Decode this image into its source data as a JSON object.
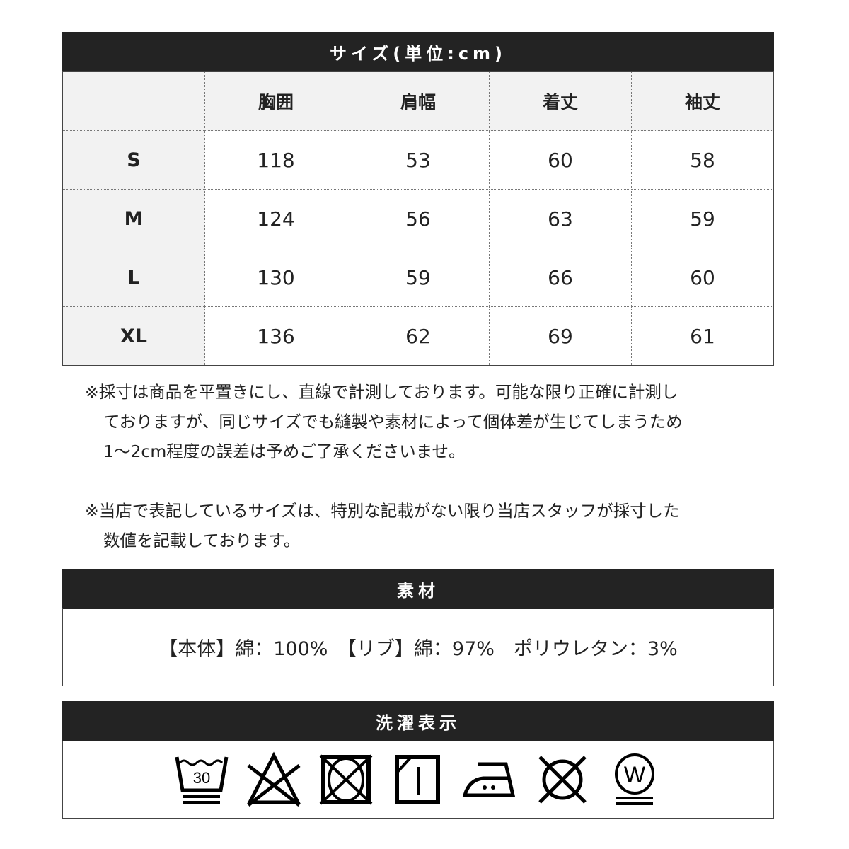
{
  "size_section": {
    "title": "サイズ(単位:cm)",
    "columns": [
      "",
      "胸囲",
      "肩幅",
      "着丈",
      "袖丈"
    ],
    "rows": [
      {
        "size": "S",
        "values": [
          "118",
          "53",
          "60",
          "58"
        ]
      },
      {
        "size": "M",
        "values": [
          "124",
          "56",
          "63",
          "59"
        ]
      },
      {
        "size": "L",
        "values": [
          "130",
          "59",
          "66",
          "60"
        ]
      },
      {
        "size": "XL",
        "values": [
          "136",
          "62",
          "69",
          "61"
        ]
      }
    ]
  },
  "notes": [
    [
      "※採寸は商品を平置きにし、直線で計測しております。可能な限り正確に計測し",
      "ておりますが、同じサイズでも縫製や素材によって個体差が生じてしまうため",
      "1～2cm程度の誤差は予めご了承くださいませ。"
    ],
    [
      "※当店で表記しているサイズは、特別な記載がない限り当店スタッフが採寸した",
      "数値を記載しております。"
    ]
  ],
  "material_section": {
    "title": "素材",
    "text": "【本体】綿：100%　【リブ】綿：97%　ポリウレタン：3%"
  },
  "care_section": {
    "title": "洗濯表示",
    "icons": [
      "wash-30-gentle-icon",
      "no-bleach-icon",
      "no-tumble-dry-icon",
      "line-dry-shade-icon",
      "iron-medium-icon",
      "no-dry-clean-icon",
      "wet-clean-gentle-icon"
    ],
    "wash_temp": "30",
    "wet_clean_letter": "W"
  }
}
